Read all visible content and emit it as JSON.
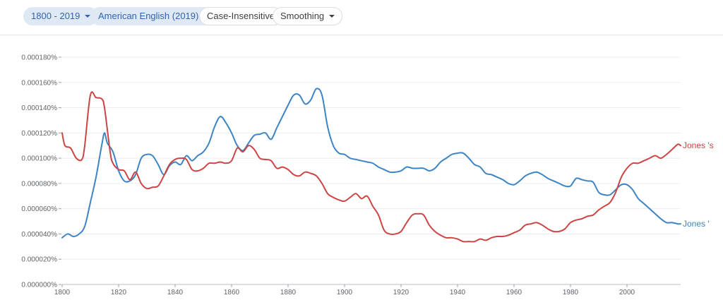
{
  "toolbar": {
    "date_range": "1800 - 2019",
    "corpus": "American English (2019)",
    "case": "Case-Insensitive",
    "smoothing": "Smoothing",
    "caret_icon": "caret-down-icon"
  },
  "chart_data": {
    "type": "line",
    "title": "",
    "xlabel": "",
    "ylabel": "",
    "xlim": [
      1800,
      2019
    ],
    "ylim": [
      0,
      0.00018
    ],
    "grid": true,
    "legend": "inline-right",
    "x_ticks": [
      "1800",
      "1820",
      "1840",
      "1860",
      "1880",
      "1900",
      "1920",
      "1940",
      "1960",
      "1980",
      "2000"
    ],
    "y_ticks": [
      "0.000000%",
      "0.000020%",
      "0.000040%",
      "0.000060%",
      "0.000080%",
      "0.000100%",
      "0.000120%",
      "0.000140%",
      "0.000160%",
      "0.000180%"
    ],
    "series": [
      {
        "name": "Jones 's",
        "color": "#cc4444",
        "points": [
          [
            1800,
            120
          ],
          [
            1801,
            110
          ],
          [
            1803,
            108
          ],
          [
            1805,
            100
          ],
          [
            1807,
            99
          ],
          [
            1808,
            110
          ],
          [
            1810,
            150
          ],
          [
            1812,
            148
          ],
          [
            1814,
            147
          ],
          [
            1815,
            140
          ],
          [
            1817,
            105
          ],
          [
            1818,
            96
          ],
          [
            1820,
            91
          ],
          [
            1822,
            90
          ],
          [
            1824,
            83
          ],
          [
            1826,
            89
          ],
          [
            1828,
            80
          ],
          [
            1830,
            76
          ],
          [
            1832,
            77
          ],
          [
            1834,
            78
          ],
          [
            1836,
            86
          ],
          [
            1838,
            95
          ],
          [
            1840,
            99
          ],
          [
            1842,
            100
          ],
          [
            1844,
            99
          ],
          [
            1846,
            91
          ],
          [
            1848,
            90
          ],
          [
            1850,
            92
          ],
          [
            1852,
            96
          ],
          [
            1854,
            96
          ],
          [
            1856,
            97
          ],
          [
            1858,
            96
          ],
          [
            1860,
            98
          ],
          [
            1862,
            108
          ],
          [
            1864,
            105
          ],
          [
            1866,
            110
          ],
          [
            1868,
            107
          ],
          [
            1870,
            100
          ],
          [
            1872,
            99
          ],
          [
            1874,
            98
          ],
          [
            1876,
            92
          ],
          [
            1878,
            93
          ],
          [
            1880,
            91
          ],
          [
            1882,
            87
          ],
          [
            1884,
            86
          ],
          [
            1886,
            89
          ],
          [
            1888,
            88
          ],
          [
            1890,
            86
          ],
          [
            1892,
            80
          ],
          [
            1894,
            72
          ],
          [
            1896,
            69
          ],
          [
            1898,
            67
          ],
          [
            1900,
            66
          ],
          [
            1902,
            69
          ],
          [
            1904,
            72
          ],
          [
            1906,
            68
          ],
          [
            1908,
            70
          ],
          [
            1910,
            62
          ],
          [
            1912,
            55
          ],
          [
            1914,
            43
          ],
          [
            1916,
            40
          ],
          [
            1918,
            40
          ],
          [
            1920,
            42
          ],
          [
            1922,
            49
          ],
          [
            1924,
            55
          ],
          [
            1926,
            56
          ],
          [
            1928,
            55
          ],
          [
            1930,
            47
          ],
          [
            1932,
            42
          ],
          [
            1934,
            39
          ],
          [
            1936,
            37
          ],
          [
            1938,
            37
          ],
          [
            1940,
            36
          ],
          [
            1942,
            34
          ],
          [
            1944,
            34
          ],
          [
            1946,
            34
          ],
          [
            1948,
            36
          ],
          [
            1950,
            35
          ],
          [
            1952,
            37
          ],
          [
            1954,
            38
          ],
          [
            1956,
            38
          ],
          [
            1958,
            39
          ],
          [
            1960,
            41
          ],
          [
            1962,
            43
          ],
          [
            1964,
            47
          ],
          [
            1966,
            48
          ],
          [
            1968,
            49
          ],
          [
            1970,
            47
          ],
          [
            1972,
            44
          ],
          [
            1974,
            42
          ],
          [
            1976,
            42
          ],
          [
            1978,
            44
          ],
          [
            1980,
            49
          ],
          [
            1982,
            51
          ],
          [
            1984,
            52
          ],
          [
            1986,
            54
          ],
          [
            1988,
            55
          ],
          [
            1990,
            59
          ],
          [
            1992,
            62
          ],
          [
            1994,
            65
          ],
          [
            1996,
            73
          ],
          [
            1998,
            85
          ],
          [
            2000,
            92
          ],
          [
            2002,
            96
          ],
          [
            2004,
            96
          ],
          [
            2006,
            98
          ],
          [
            2008,
            100
          ],
          [
            2010,
            102
          ],
          [
            2012,
            100
          ],
          [
            2014,
            103
          ],
          [
            2016,
            107
          ],
          [
            2018,
            111
          ],
          [
            2019,
            110
          ]
        ]
      },
      {
        "name": "Jones '",
        "color": "#3c84c4",
        "points": [
          [
            1800,
            37
          ],
          [
            1802,
            40
          ],
          [
            1804,
            38
          ],
          [
            1806,
            40
          ],
          [
            1808,
            46
          ],
          [
            1810,
            65
          ],
          [
            1812,
            85
          ],
          [
            1814,
            110
          ],
          [
            1815,
            120
          ],
          [
            1816,
            112
          ],
          [
            1818,
            105
          ],
          [
            1820,
            90
          ],
          [
            1822,
            82
          ],
          [
            1824,
            82
          ],
          [
            1826,
            87
          ],
          [
            1828,
            100
          ],
          [
            1830,
            103
          ],
          [
            1832,
            102
          ],
          [
            1834,
            95
          ],
          [
            1836,
            87
          ],
          [
            1838,
            94
          ],
          [
            1840,
            97
          ],
          [
            1842,
            95
          ],
          [
            1844,
            102
          ],
          [
            1846,
            98
          ],
          [
            1848,
            102
          ],
          [
            1850,
            105
          ],
          [
            1852,
            112
          ],
          [
            1854,
            125
          ],
          [
            1856,
            133
          ],
          [
            1858,
            128
          ],
          [
            1860,
            120
          ],
          [
            1862,
            110
          ],
          [
            1864,
            106
          ],
          [
            1866,
            112
          ],
          [
            1868,
            118
          ],
          [
            1870,
            119
          ],
          [
            1872,
            120
          ],
          [
            1874,
            115
          ],
          [
            1876,
            124
          ],
          [
            1878,
            133
          ],
          [
            1880,
            142
          ],
          [
            1882,
            150
          ],
          [
            1884,
            150
          ],
          [
            1886,
            143
          ],
          [
            1888,
            146
          ],
          [
            1890,
            155
          ],
          [
            1892,
            150
          ],
          [
            1894,
            125
          ],
          [
            1896,
            110
          ],
          [
            1898,
            104
          ],
          [
            1900,
            103
          ],
          [
            1902,
            100
          ],
          [
            1904,
            99
          ],
          [
            1906,
            98
          ],
          [
            1908,
            97
          ],
          [
            1910,
            96
          ],
          [
            1912,
            93
          ],
          [
            1914,
            91
          ],
          [
            1916,
            89
          ],
          [
            1918,
            89
          ],
          [
            1920,
            90
          ],
          [
            1922,
            93
          ],
          [
            1924,
            92
          ],
          [
            1926,
            92
          ],
          [
            1928,
            92
          ],
          [
            1930,
            90
          ],
          [
            1932,
            92
          ],
          [
            1934,
            97
          ],
          [
            1936,
            100
          ],
          [
            1938,
            103
          ],
          [
            1940,
            104
          ],
          [
            1942,
            104
          ],
          [
            1944,
            100
          ],
          [
            1946,
            95
          ],
          [
            1948,
            93
          ],
          [
            1950,
            88
          ],
          [
            1952,
            87
          ],
          [
            1954,
            85
          ],
          [
            1956,
            83
          ],
          [
            1958,
            80
          ],
          [
            1960,
            79
          ],
          [
            1962,
            82
          ],
          [
            1964,
            86
          ],
          [
            1966,
            88
          ],
          [
            1968,
            89
          ],
          [
            1970,
            87
          ],
          [
            1972,
            84
          ],
          [
            1974,
            82
          ],
          [
            1976,
            80
          ],
          [
            1978,
            78
          ],
          [
            1980,
            78
          ],
          [
            1982,
            84
          ],
          [
            1984,
            83
          ],
          [
            1986,
            82
          ],
          [
            1988,
            81
          ],
          [
            1990,
            73
          ],
          [
            1992,
            71
          ],
          [
            1994,
            71
          ],
          [
            1996,
            75
          ],
          [
            1998,
            79
          ],
          [
            2000,
            79
          ],
          [
            2002,
            75
          ],
          [
            2004,
            68
          ],
          [
            2006,
            64
          ],
          [
            2008,
            60
          ],
          [
            2010,
            56
          ],
          [
            2012,
            52
          ],
          [
            2014,
            49
          ],
          [
            2016,
            49
          ],
          [
            2018,
            48
          ],
          [
            2019,
            48
          ]
        ]
      }
    ]
  }
}
